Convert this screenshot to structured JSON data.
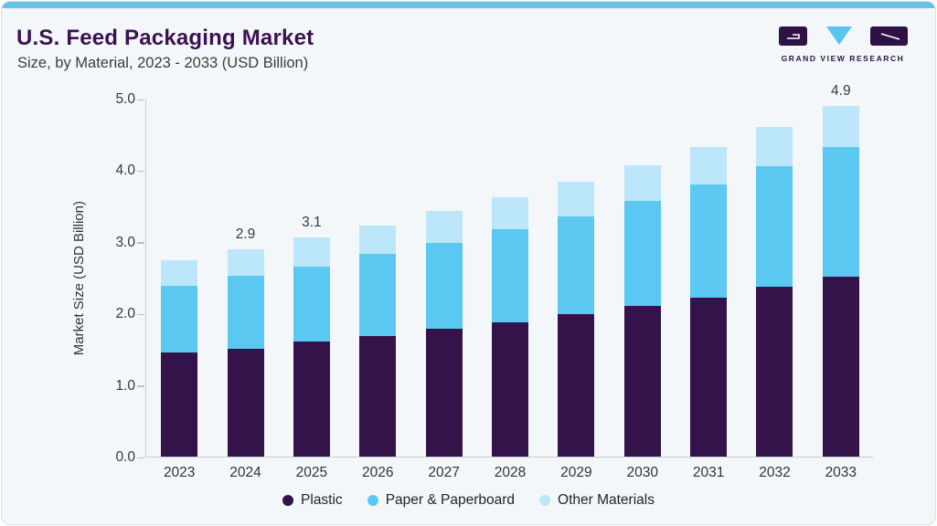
{
  "header": {
    "title": "U.S. Feed Packaging Market",
    "subtitle": "Size, by Material, 2023 - 2033 (USD Billion)",
    "brand_name": "GRAND VIEW RESEARCH"
  },
  "colors": {
    "accent_bar": "#65C3E8",
    "card_background": "#F3F7FA",
    "title_purple": "#3D1053",
    "logo_purple": "#2F1245",
    "logo_triangle": "#58C4EE",
    "axis_line": "#C7CDD4",
    "plastic": "#331349",
    "paper_paperboard": "#5BC8F1",
    "other_materials": "#BCE7FA"
  },
  "chart_data": {
    "type": "bar",
    "stacked": true,
    "title": "U.S. Feed Packaging Market",
    "subtitle": "Size, by Material, 2023 - 2033 (USD Billion)",
    "xlabel": "",
    "ylabel": "Market Size (USD Billion)",
    "ylim": [
      0,
      5
    ],
    "yticks": [
      "0.0",
      "1.0",
      "2.0",
      "3.0",
      "4.0",
      "5.0"
    ],
    "grid": false,
    "legend_position": "bottom",
    "categories": [
      "2023",
      "2024",
      "2025",
      "2026",
      "2027",
      "2028",
      "2029",
      "2030",
      "2031",
      "2032",
      "2033"
    ],
    "series": [
      {
        "name": "Plastic",
        "color": "#331349",
        "values": [
          1.46,
          1.51,
          1.61,
          1.68,
          1.78,
          1.87,
          1.99,
          2.11,
          2.22,
          2.37,
          2.51
        ]
      },
      {
        "name": "Paper & Paperboard",
        "color": "#5BC8F1",
        "values": [
          0.92,
          1.01,
          1.04,
          1.15,
          1.21,
          1.31,
          1.37,
          1.46,
          1.58,
          1.69,
          1.81
        ]
      },
      {
        "name": "Other Materials",
        "color": "#BCE7FA",
        "values": [
          0.36,
          0.38,
          0.41,
          0.4,
          0.44,
          0.44,
          0.48,
          0.5,
          0.53,
          0.54,
          0.58
        ]
      }
    ],
    "totals": [
      2.74,
      2.9,
      3.06,
      3.23,
      3.43,
      3.62,
      3.84,
      4.07,
      4.33,
      4.6,
      4.9
    ],
    "bar_value_labels": [
      "",
      "2.9",
      "3.1",
      "",
      "",
      "",
      "",
      "",
      "",
      "",
      "4.9"
    ]
  }
}
